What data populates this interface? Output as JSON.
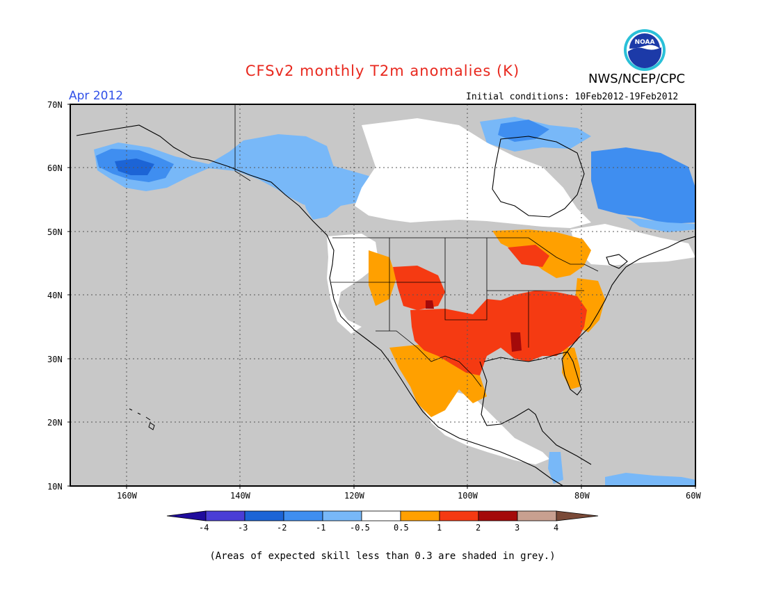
{
  "header": {
    "title": "CFSv2 monthly T2m anomalies (K)",
    "period": "Apr 2012",
    "agency": "NWS/NCEP/CPC",
    "initial_conditions": "Initial conditions: 10Feb2012-19Feb2012",
    "logo_text": "NOAA"
  },
  "footer": {
    "note": "(Areas of expected skill less than 0.3 are shaded in grey.)"
  },
  "map": {
    "projection": "lat-lon",
    "lon_range": [
      -170,
      -60
    ],
    "lat_range": [
      10,
      70
    ],
    "lat_labels": [
      "10N",
      "20N",
      "30N",
      "40N",
      "50N",
      "60N",
      "70N"
    ],
    "lon_labels": [
      "160W",
      "140W",
      "120W",
      "100W",
      "80W",
      "60W"
    ],
    "grey_color": "#c8c8c8"
  },
  "colorbar": {
    "levels": [
      "-4",
      "-3",
      "-2",
      "-1",
      "-0.5",
      "0.5",
      "1",
      "2",
      "3",
      "4"
    ],
    "colors": [
      "#1f0c9c",
      "#4a3ed6",
      "#1c64d6",
      "#3f8ef0",
      "#78b8f8",
      "#ffffff",
      "#ffa000",
      "#f53a12",
      "#a40a0a",
      "#c8a090",
      "#7a4a38"
    ]
  },
  "chart_data": {
    "type": "heatmap",
    "title": "CFSv2 monthly T2m anomalies (K)",
    "units": "K",
    "grid_on": true,
    "x_range": [
      -170,
      -60
    ],
    "y_range": [
      10,
      70
    ],
    "regions": [
      {
        "category": "cool -3 to -2",
        "lon": [
          -163,
          -150
        ],
        "lat": [
          59,
          63
        ]
      },
      {
        "category": "cool -2 to -1",
        "lon": [
          -166,
          -145
        ],
        "lat": [
          58,
          65
        ]
      },
      {
        "category": "cool -1 to -0.5",
        "lon": [
          -148,
          -110
        ],
        "lat": [
          55,
          65
        ]
      },
      {
        "category": "cool -1 to -0.5",
        "lon": [
          -117,
          -102
        ],
        "lat": [
          52,
          58
        ]
      },
      {
        "category": "cool -2 to -1",
        "lon": [
          -77,
          -62
        ],
        "lat": [
          52,
          62
        ]
      },
      {
        "category": "cool -2 to -1",
        "lon": [
          -84,
          -76
        ],
        "lat": [
          63,
          68
        ]
      },
      {
        "category": "near normal",
        "lon": [
          -112,
          -80
        ],
        "lat": [
          53,
          66
        ]
      },
      {
        "category": "near normal",
        "lon": [
          -84,
          -64
        ],
        "lat": [
          43,
          51
        ]
      },
      {
        "category": "near normal",
        "lon": [
          -115,
          -95
        ],
        "lat": [
          14,
          25
        ]
      },
      {
        "category": "warm 0.5 to 1",
        "lon": [
          -112,
          -98
        ],
        "lat": [
          23,
          32
        ]
      },
      {
        "category": "warm 0.5 to 1",
        "lon": [
          -98,
          -80
        ],
        "lat": [
          43,
          49
        ]
      },
      {
        "category": "warm 1 to 2",
        "lon": [
          -110,
          -95
        ],
        "lat": [
          29,
          37
        ]
      },
      {
        "category": "warm 1 to 2",
        "lon": [
          -96,
          -77
        ],
        "lat": [
          28,
          38
        ]
      },
      {
        "category": "warm 1 to 2",
        "lon": [
          -113,
          -104
        ],
        "lat": [
          37,
          42
        ]
      },
      {
        "category": "warm 2 to 3",
        "lon": [
          -93,
          -91
        ],
        "lat": [
          31,
          34
        ]
      },
      {
        "category": "warm 2 to 3",
        "lon": [
          -107,
          -105
        ],
        "lat": [
          38,
          40
        ]
      }
    ]
  }
}
